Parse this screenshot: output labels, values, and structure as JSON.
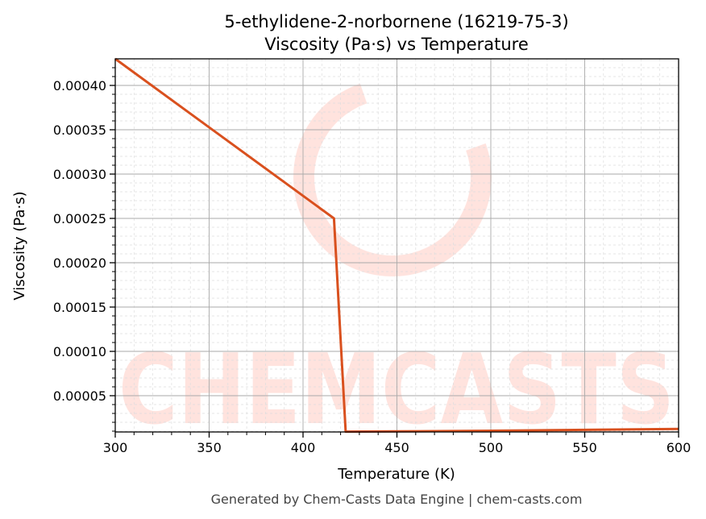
{
  "chart_data": {
    "type": "line",
    "title": "5-ethylidene-2-norbornene (16219-75-3)",
    "subtitle": "Viscosity (Pa·s) vs Temperature",
    "xlabel": "Temperature (K)",
    "ylabel": "Viscosity (Pa·s)",
    "xlim": [
      300,
      600
    ],
    "ylim": [
      9.1e-06,
      0.00043
    ],
    "xticks": [
      300,
      350,
      400,
      450,
      500,
      550,
      600
    ],
    "xtick_labels": [
      "300",
      "350",
      "400",
      "450",
      "500",
      "550",
      "600"
    ],
    "yticks": [
      5e-05,
      0.0001,
      0.00015,
      0.0002,
      0.00025,
      0.0003,
      0.00035,
      0.0004
    ],
    "ytick_labels": [
      "0.00005",
      "0.00010",
      "0.00015",
      "0.00020",
      "0.00025",
      "0.00030",
      "0.00035",
      "0.00040"
    ],
    "grid": true,
    "series": [
      {
        "name": "Viscosity",
        "color": "#d9501e",
        "x": [
          300,
          416.5,
          422.7,
          450,
          500,
          550,
          600
        ],
        "y": [
          0.00043,
          0.00025,
          9.5e-06,
          9.7e-06,
          1.05e-05,
          1.15e-05,
          1.25e-05
        ]
      }
    ],
    "watermark": "CHEMCASTS",
    "footer": "Generated by Chem-Casts Data Engine | chem-casts.com"
  }
}
